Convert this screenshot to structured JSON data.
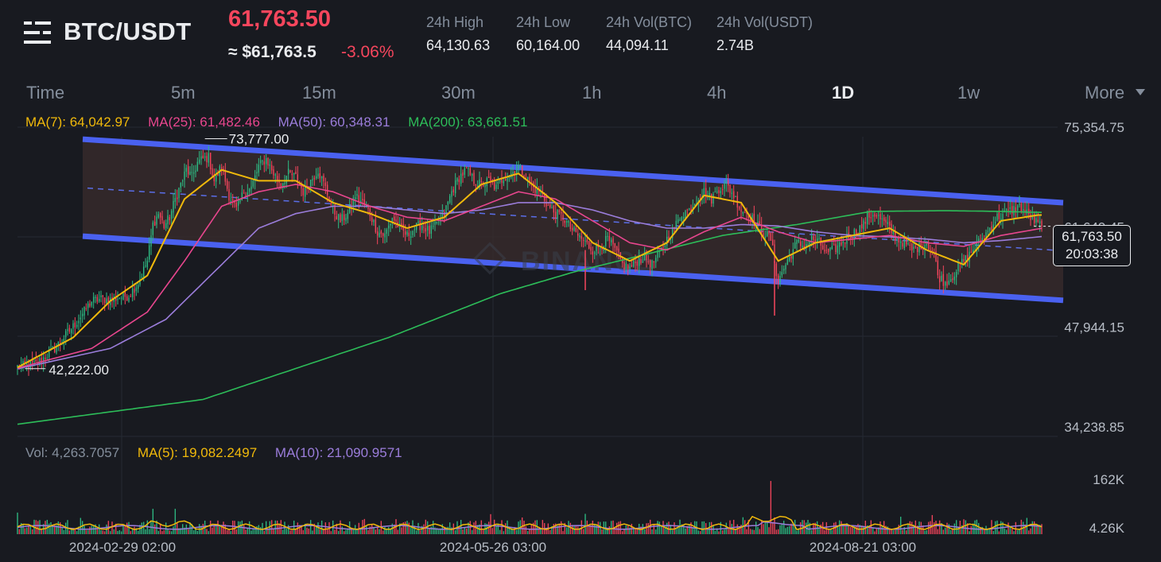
{
  "header": {
    "pair": "BTC/USDT",
    "price": "61,763.50",
    "approx_price": "≈ $61,763.5",
    "change_pct": "-3.06%",
    "stats": [
      {
        "label": "24h High",
        "value": "64,130.63"
      },
      {
        "label": "24h Low",
        "value": "60,164.00"
      },
      {
        "label": "24h Vol(BTC)",
        "value": "44,094.11"
      },
      {
        "label": "24h Vol(USDT)",
        "value": "2.74B"
      }
    ]
  },
  "tabs": [
    "Time",
    "5m",
    "15m",
    "30m",
    "1h",
    "4h",
    "1D",
    "1w"
  ],
  "active_tab": "1D",
  "more_label": "More",
  "ma_legend": [
    {
      "label": "MA(7): 64,042.97",
      "color": "#f0b90b"
    },
    {
      "label": "MA(25): 61,482.46",
      "color": "#e8468e"
    },
    {
      "label": "MA(50): 60,348.31",
      "color": "#9b7ddb"
    },
    {
      "label": "MA(200): 63,661.51",
      "color": "#2dbd59"
    }
  ],
  "vol_legend": [
    {
      "label": "Vol: 4,263.7057",
      "color": "#848e9c"
    },
    {
      "label": "MA(5): 19,082.2497",
      "color": "#f0b90b"
    },
    {
      "label": "MA(10): 21,090.9571",
      "color": "#9b7ddb"
    }
  ],
  "price_tag": {
    "price": "61,763.50",
    "countdown": "20:03:38"
  },
  "watermark": "BINANCE",
  "colors": {
    "up": "#2ebd85",
    "down": "#f6465d",
    "channel": "#4a61f0",
    "bg": "#181a20"
  },
  "chart_data": {
    "type": "candlestick",
    "title": "",
    "price_axis_labels": [
      "75,354.75",
      "61,649.45",
      "47,944.15",
      "34,238.85"
    ],
    "price_axis_values": [
      75354.75,
      61649.45,
      47944.15,
      34238.85
    ],
    "volume_axis_labels": [
      "162K",
      "4.26K"
    ],
    "time_axis_labels": [
      "2024-02-29 02:00",
      "2024-05-26 03:00",
      "2024-08-21 03:00"
    ],
    "annotations": {
      "high_label": "73,777.00",
      "high_value": 73777.0,
      "low_label": "42,222.00",
      "low_value": 42222.0
    },
    "last_price": 61763.5,
    "channel": {
      "upper_start": 73700,
      "upper_end": 65000,
      "lower_start": 60400,
      "lower_end": 51600,
      "mid_start": 67000,
      "mid_end": 58400
    },
    "close_series": [
      [
        0,
        42500
      ],
      [
        10,
        42800
      ],
      [
        20,
        45000
      ],
      [
        30,
        48000
      ],
      [
        40,
        51500
      ],
      [
        45,
        51800
      ],
      [
        50,
        51700
      ],
      [
        55,
        52000
      ],
      [
        60,
        52300
      ],
      [
        65,
        54000
      ],
      [
        70,
        57000
      ],
      [
        73,
        62000
      ],
      [
        76,
        63500
      ],
      [
        79,
        61800
      ],
      [
        82,
        63000
      ],
      [
        85,
        65500
      ],
      [
        88,
        67500
      ],
      [
        91,
        69500
      ],
      [
        94,
        68500
      ],
      [
        97,
        70500
      ],
      [
        100,
        71000
      ],
      [
        103,
        71200
      ],
      [
        106,
        68000
      ],
      [
        110,
        70000
      ],
      [
        114,
        66000
      ],
      [
        118,
        64000
      ],
      [
        122,
        66500
      ],
      [
        126,
        67000
      ],
      [
        130,
        70000
      ],
      [
        134,
        71000
      ],
      [
        138,
        69000
      ],
      [
        142,
        67500
      ],
      [
        146,
        69000
      ],
      [
        150,
        68500
      ],
      [
        154,
        66500
      ],
      [
        158,
        68000
      ],
      [
        162,
        69500
      ],
      [
        166,
        67000
      ],
      [
        170,
        64000
      ],
      [
        174,
        62500
      ],
      [
        178,
        63500
      ],
      [
        182,
        66000
      ],
      [
        186,
        65000
      ],
      [
        190,
        63500
      ],
      [
        194,
        61000
      ],
      [
        198,
        60500
      ],
      [
        202,
        63000
      ],
      [
        206,
        61500
      ],
      [
        210,
        60500
      ],
      [
        214,
        61500
      ],
      [
        218,
        62000
      ],
      [
        222,
        61000
      ],
      [
        226,
        62000
      ],
      [
        230,
        63500
      ],
      [
        234,
        66500
      ],
      [
        238,
        68500
      ],
      [
        242,
        69500
      ],
      [
        246,
        68000
      ],
      [
        250,
        67500
      ],
      [
        254,
        68000
      ],
      [
        258,
        67000
      ],
      [
        262,
        68500
      ],
      [
        266,
        69000
      ],
      [
        270,
        70000
      ],
      [
        274,
        68500
      ],
      [
        278,
        67000
      ],
      [
        282,
        66500
      ],
      [
        286,
        64500
      ],
      [
        290,
        63500
      ],
      [
        294,
        63000
      ],
      [
        298,
        61500
      ],
      [
        302,
        60500
      ],
      [
        306,
        59500
      ],
      [
        310,
        58500
      ],
      [
        314,
        59000
      ],
      [
        318,
        60000
      ],
      [
        322,
        58500
      ],
      [
        326,
        56500
      ],
      [
        330,
        56000
      ],
      [
        334,
        57000
      ],
      [
        338,
        57500
      ],
      [
        342,
        56500
      ],
      [
        346,
        58000
      ],
      [
        350,
        60000
      ],
      [
        354,
        61500
      ],
      [
        358,
        63500
      ],
      [
        362,
        64000
      ],
      [
        366,
        65500
      ],
      [
        370,
        66500
      ],
      [
        374,
        65500
      ],
      [
        378,
        67000
      ],
      [
        382,
        67500
      ],
      [
        386,
        66000
      ],
      [
        390,
        64000
      ],
      [
        394,
        63500
      ],
      [
        398,
        62000
      ],
      [
        402,
        61000
      ],
      [
        406,
        60000
      ],
      [
        408,
        57000
      ],
      [
        410,
        54000
      ],
      [
        412,
        55500
      ],
      [
        416,
        57500
      ],
      [
        420,
        59500
      ],
      [
        424,
        59000
      ],
      [
        428,
        60000
      ],
      [
        432,
        59500
      ],
      [
        436,
        58000
      ],
      [
        440,
        58500
      ],
      [
        444,
        59500
      ],
      [
        448,
        60500
      ],
      [
        452,
        61000
      ],
      [
        456,
        62000
      ],
      [
        458,
        63000
      ],
      [
        462,
        63500
      ],
      [
        466,
        62500
      ],
      [
        470,
        61500
      ],
      [
        474,
        60000
      ],
      [
        478,
        59500
      ],
      [
        482,
        58500
      ],
      [
        486,
        59000
      ],
      [
        490,
        59500
      ],
      [
        494,
        58000
      ],
      [
        496,
        55000
      ],
      [
        500,
        54000
      ],
      [
        504,
        55000
      ],
      [
        508,
        56500
      ],
      [
        512,
        57500
      ],
      [
        516,
        59000
      ],
      [
        520,
        60000
      ],
      [
        524,
        61500
      ],
      [
        528,
        63000
      ],
      [
        532,
        63500
      ],
      [
        536,
        64000
      ],
      [
        540,
        64500
      ],
      [
        544,
        63500
      ],
      [
        548,
        62500
      ],
      [
        552,
        61763.5
      ]
    ],
    "ma": {
      "ma7": [
        [
          0,
          42400
        ],
        [
          30,
          46500
        ],
        [
          50,
          51500
        ],
        [
          70,
          55000
        ],
        [
          90,
          65500
        ],
        [
          110,
          69500
        ],
        [
          130,
          68000
        ],
        [
          150,
          68000
        ],
        [
          170,
          65000
        ],
        [
          190,
          63500
        ],
        [
          210,
          61500
        ],
        [
          230,
          63000
        ],
        [
          250,
          67500
        ],
        [
          270,
          69000
        ],
        [
          290,
          65000
        ],
        [
          310,
          59500
        ],
        [
          330,
          57000
        ],
        [
          350,
          59500
        ],
        [
          370,
          66000
        ],
        [
          390,
          65000
        ],
        [
          410,
          57000
        ],
        [
          430,
          59500
        ],
        [
          450,
          60500
        ],
        [
          470,
          61500
        ],
        [
          490,
          58500
        ],
        [
          510,
          56500
        ],
        [
          530,
          62500
        ],
        [
          550,
          63300
        ]
      ],
      "ma25": [
        [
          0,
          42300
        ],
        [
          40,
          45000
        ],
        [
          70,
          50000
        ],
        [
          90,
          57000
        ],
        [
          110,
          64500
        ],
        [
          130,
          66500
        ],
        [
          150,
          67500
        ],
        [
          170,
          66500
        ],
        [
          190,
          64500
        ],
        [
          210,
          63000
        ],
        [
          230,
          62500
        ],
        [
          250,
          64500
        ],
        [
          270,
          66500
        ],
        [
          290,
          65500
        ],
        [
          310,
          62500
        ],
        [
          330,
          59500
        ],
        [
          350,
          58500
        ],
        [
          370,
          61000
        ],
        [
          390,
          63000
        ],
        [
          410,
          61000
        ],
        [
          430,
          59500
        ],
        [
          450,
          60000
        ],
        [
          470,
          60500
        ],
        [
          490,
          59500
        ],
        [
          510,
          59000
        ],
        [
          530,
          60500
        ],
        [
          552,
          61482
        ]
      ],
      "ma50": [
        [
          0,
          42200
        ],
        [
          50,
          45000
        ],
        [
          80,
          49000
        ],
        [
          110,
          56500
        ],
        [
          130,
          61500
        ],
        [
          150,
          63500
        ],
        [
          170,
          64500
        ],
        [
          190,
          64500
        ],
        [
          210,
          64000
        ],
        [
          230,
          63500
        ],
        [
          250,
          64000
        ],
        [
          270,
          65000
        ],
        [
          290,
          65000
        ],
        [
          310,
          64000
        ],
        [
          330,
          62500
        ],
        [
          350,
          61500
        ],
        [
          370,
          61500
        ],
        [
          390,
          62000
        ],
        [
          410,
          61800
        ],
        [
          430,
          61000
        ],
        [
          450,
          60500
        ],
        [
          470,
          60300
        ],
        [
          490,
          60000
        ],
        [
          510,
          59500
        ],
        [
          530,
          59800
        ],
        [
          552,
          60348
        ]
      ],
      "ma200": [
        [
          0,
          34600
        ],
        [
          100,
          38000
        ],
        [
          200,
          46500
        ],
        [
          260,
          52500
        ],
        [
          300,
          55500
        ],
        [
          340,
          58000
        ],
        [
          380,
          60500
        ],
        [
          420,
          62000
        ],
        [
          460,
          63800
        ],
        [
          500,
          63900
        ],
        [
          530,
          63800
        ],
        [
          552,
          63661
        ]
      ]
    },
    "volume_y_range": [
      0,
      185000
    ]
  }
}
